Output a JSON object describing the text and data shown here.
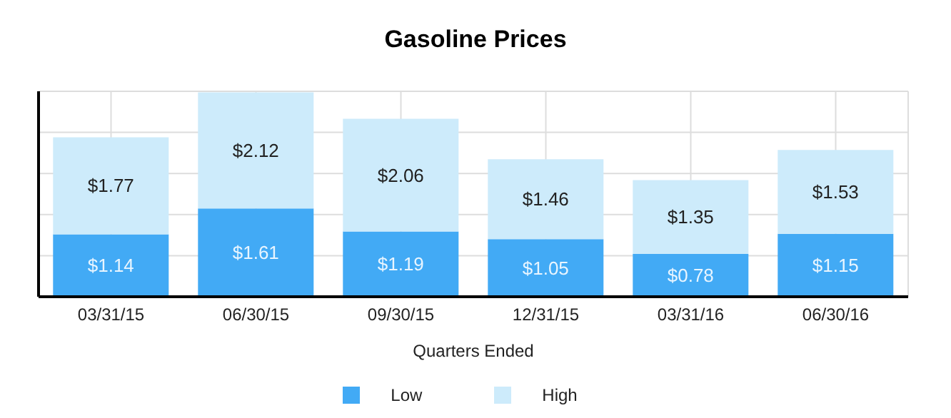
{
  "chart_data": {
    "type": "bar",
    "title": "Gasoline Prices",
    "xlabel": "Quarters Ended",
    "categories": [
      "03/31/15",
      "06/30/15",
      "09/30/15",
      "12/31/15",
      "03/31/16",
      "06/30/16"
    ],
    "series": [
      {
        "name": "Low",
        "color": "#42aaf5",
        "values": [
          1.14,
          1.61,
          1.19,
          1.05,
          0.78,
          1.15
        ],
        "value_labels": [
          "$1.14",
          "$1.61",
          "$1.19",
          "$1.05",
          "$0.78",
          "$1.15"
        ]
      },
      {
        "name": "High",
        "color": "#cdebfb",
        "values": [
          1.77,
          2.12,
          2.06,
          1.46,
          1.35,
          1.53
        ],
        "value_labels": [
          "$1.77",
          "$2.12",
          "$2.06",
          "$1.46",
          "$1.35",
          "$1.53"
        ]
      }
    ],
    "stacked": true,
    "tick_labels": "x",
    "grid": true,
    "legend": "bottom"
  }
}
